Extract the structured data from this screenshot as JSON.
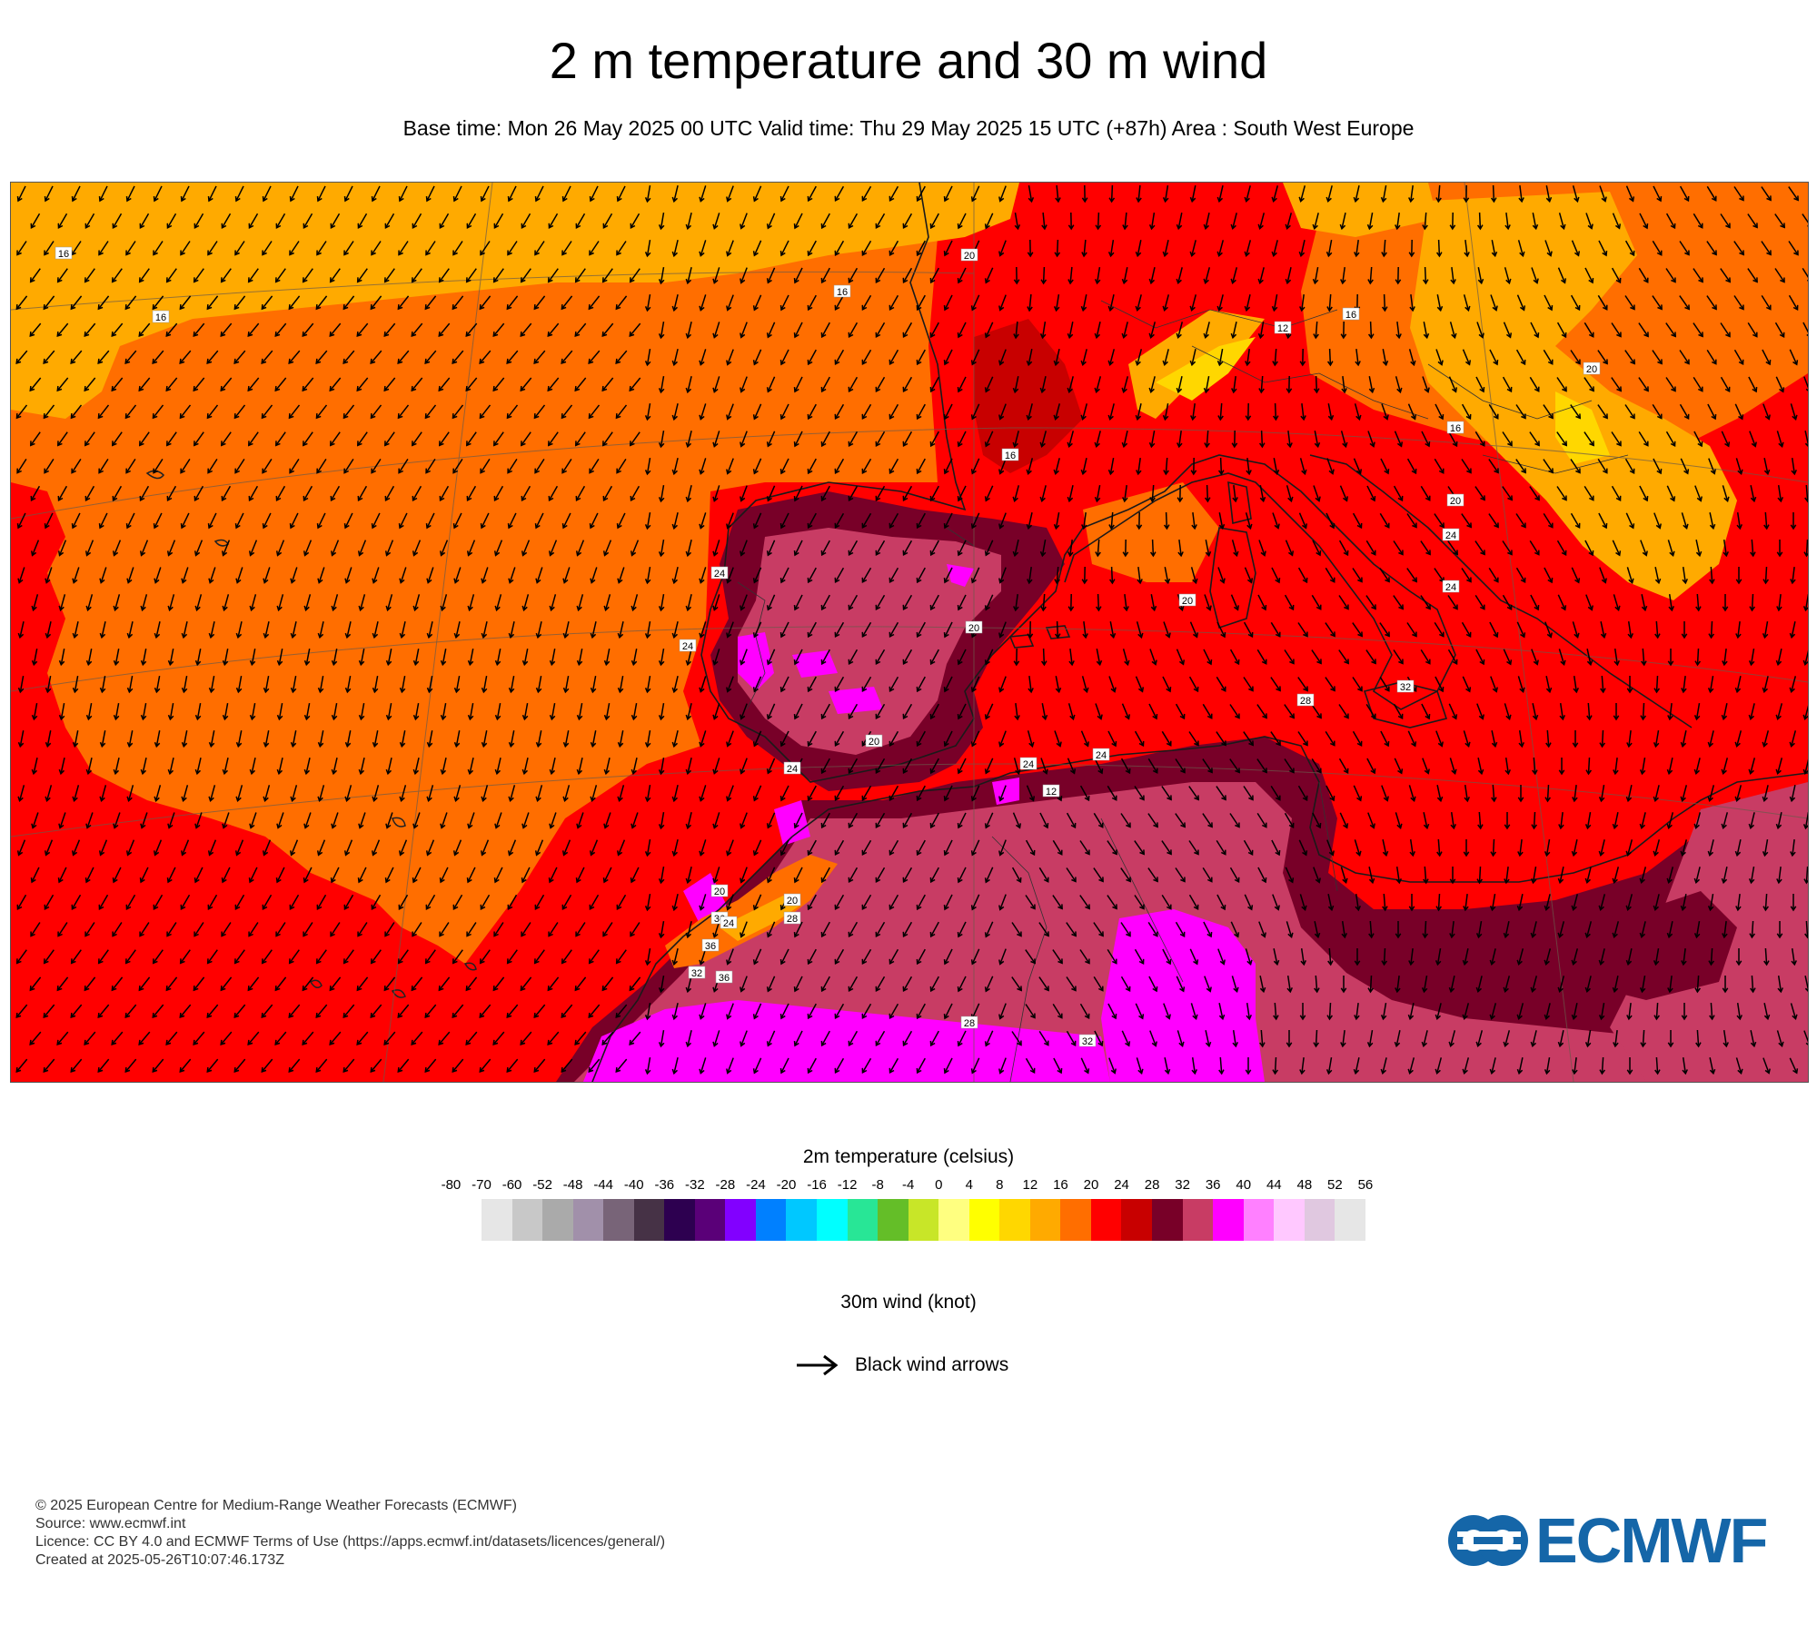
{
  "title": "2 m temperature and 30 m wind",
  "subtitle": "Base time: Mon 26 May 2025 00 UTC Valid time: Thu 29 May 2025 15 UTC (+87h) Area : South West Europe",
  "map": {
    "area": "South West Europe",
    "wind_labels": [
      "16",
      "16",
      "16",
      "20",
      "16",
      "12",
      "16",
      "20",
      "16",
      "20",
      "24",
      "20",
      "24",
      "24",
      "20",
      "24",
      "32",
      "20",
      "24",
      "24",
      "12",
      "28",
      "24",
      "20",
      "28",
      "20",
      "36",
      "24",
      "36",
      "36",
      "28",
      "32",
      "32"
    ]
  },
  "temperature_legend": {
    "title": "2m temperature (celsius)",
    "ticks": [
      "-80",
      "-70",
      "-60",
      "-52",
      "-48",
      "-44",
      "-40",
      "-36",
      "-32",
      "-28",
      "-24",
      "-20",
      "-16",
      "-12",
      "-8",
      "-4",
      "0",
      "4",
      "8",
      "12",
      "16",
      "20",
      "24",
      "28",
      "32",
      "36",
      "40",
      "44",
      "48",
      "52",
      "56"
    ],
    "colors": [
      "#e6e6e6",
      "#c8c8c8",
      "#aaaaaa",
      "#a190aa",
      "#786478",
      "#463246",
      "#2d0050",
      "#5a0078",
      "#8200ff",
      "#0080ff",
      "#00c8ff",
      "#00ffff",
      "#28e696",
      "#64be28",
      "#c8e628",
      "#ffff80",
      "#ffff00",
      "#ffd700",
      "#ffaa00",
      "#ff6e00",
      "#ff0000",
      "#c80000",
      "#780028",
      "#c83c64",
      "#ff00ff",
      "#ff80ff",
      "#ffc8ff",
      "#e0c8e0",
      "#e6e6e6"
    ]
  },
  "wind_legend": {
    "title": "30m wind (knot)",
    "arrow_label": "Black wind arrows"
  },
  "footer": {
    "copyright": "© 2025 European Centre for Medium-Range Weather Forecasts (ECMWF)",
    "source": "Source: www.ecmwf.int",
    "licence": "Licence: CC BY 4.0 and ECMWF Terms of Use (https://apps.ecmwf.int/datasets/licences/general/)",
    "created": "Created at 2025-05-26T10:07:46.173Z"
  },
  "logo_text": "ECMWF"
}
